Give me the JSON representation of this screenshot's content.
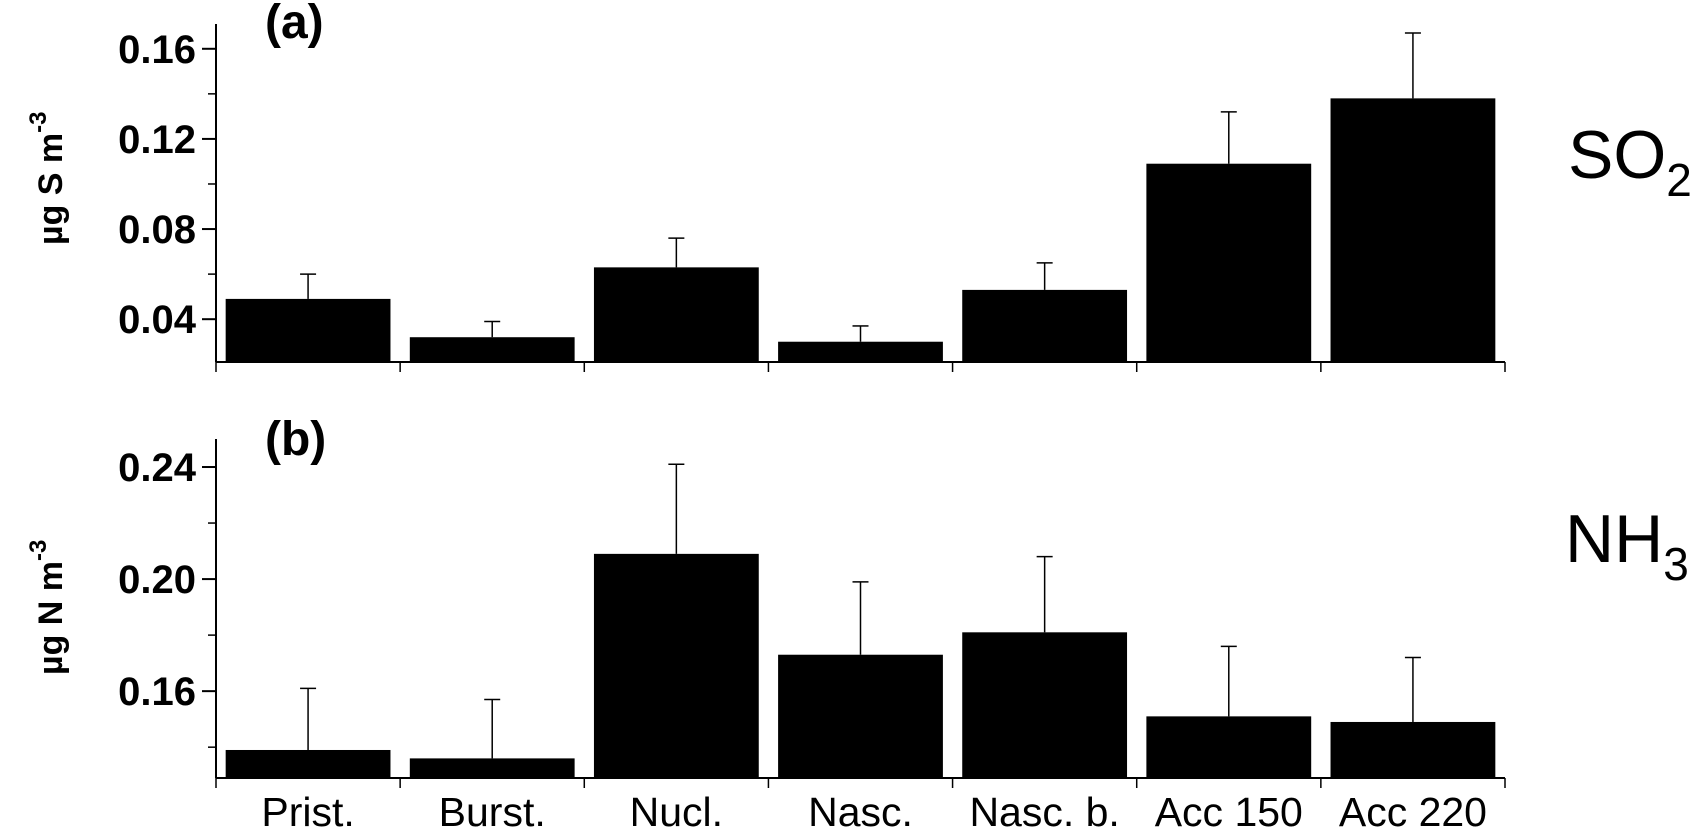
{
  "chart_data": [
    {
      "type": "bar",
      "panel_label": "(a)",
      "species": "SO",
      "species_subscript": "2",
      "ylabel": "µg S m",
      "ylabel_superscript": "-3",
      "categories": [
        "Prist.",
        "Burst.",
        "Nucl.",
        "Nasc.",
        "Nasc. b.",
        "Acc 150",
        "Acc 220"
      ],
      "values": [
        0.049,
        0.032,
        0.063,
        0.03,
        0.053,
        0.109,
        0.138
      ],
      "error_upper": [
        0.06,
        0.039,
        0.076,
        0.037,
        0.065,
        0.132,
        0.167
      ],
      "ylim": [
        0.021,
        0.171
      ],
      "yticks": [
        0.04,
        0.08,
        0.12,
        0.16
      ],
      "yticklabels": [
        "0.04",
        "0.08",
        "0.12",
        "0.16"
      ],
      "yminor": [
        0.06,
        0.1,
        0.14
      ],
      "show_xticklabels": false
    },
    {
      "type": "bar",
      "panel_label": "(b)",
      "species": "NH",
      "species_subscript": "3",
      "ylabel": "µg N m",
      "ylabel_superscript": "-3",
      "categories": [
        "Prist.",
        "Burst.",
        "Nucl.",
        "Nasc.",
        "Nasc. b.",
        "Acc 150",
        "Acc 220"
      ],
      "values": [
        0.139,
        0.136,
        0.209,
        0.173,
        0.181,
        0.151,
        0.149
      ],
      "error_upper": [
        0.161,
        0.157,
        0.241,
        0.199,
        0.208,
        0.176,
        0.172
      ],
      "ylim": [
        0.129,
        0.25
      ],
      "yticks": [
        0.16,
        0.2,
        0.24
      ],
      "yticklabels": [
        "0.16",
        "0.20",
        "0.24"
      ],
      "yminor": [
        0.14,
        0.18,
        0.22
      ],
      "show_xticklabels": true
    }
  ]
}
